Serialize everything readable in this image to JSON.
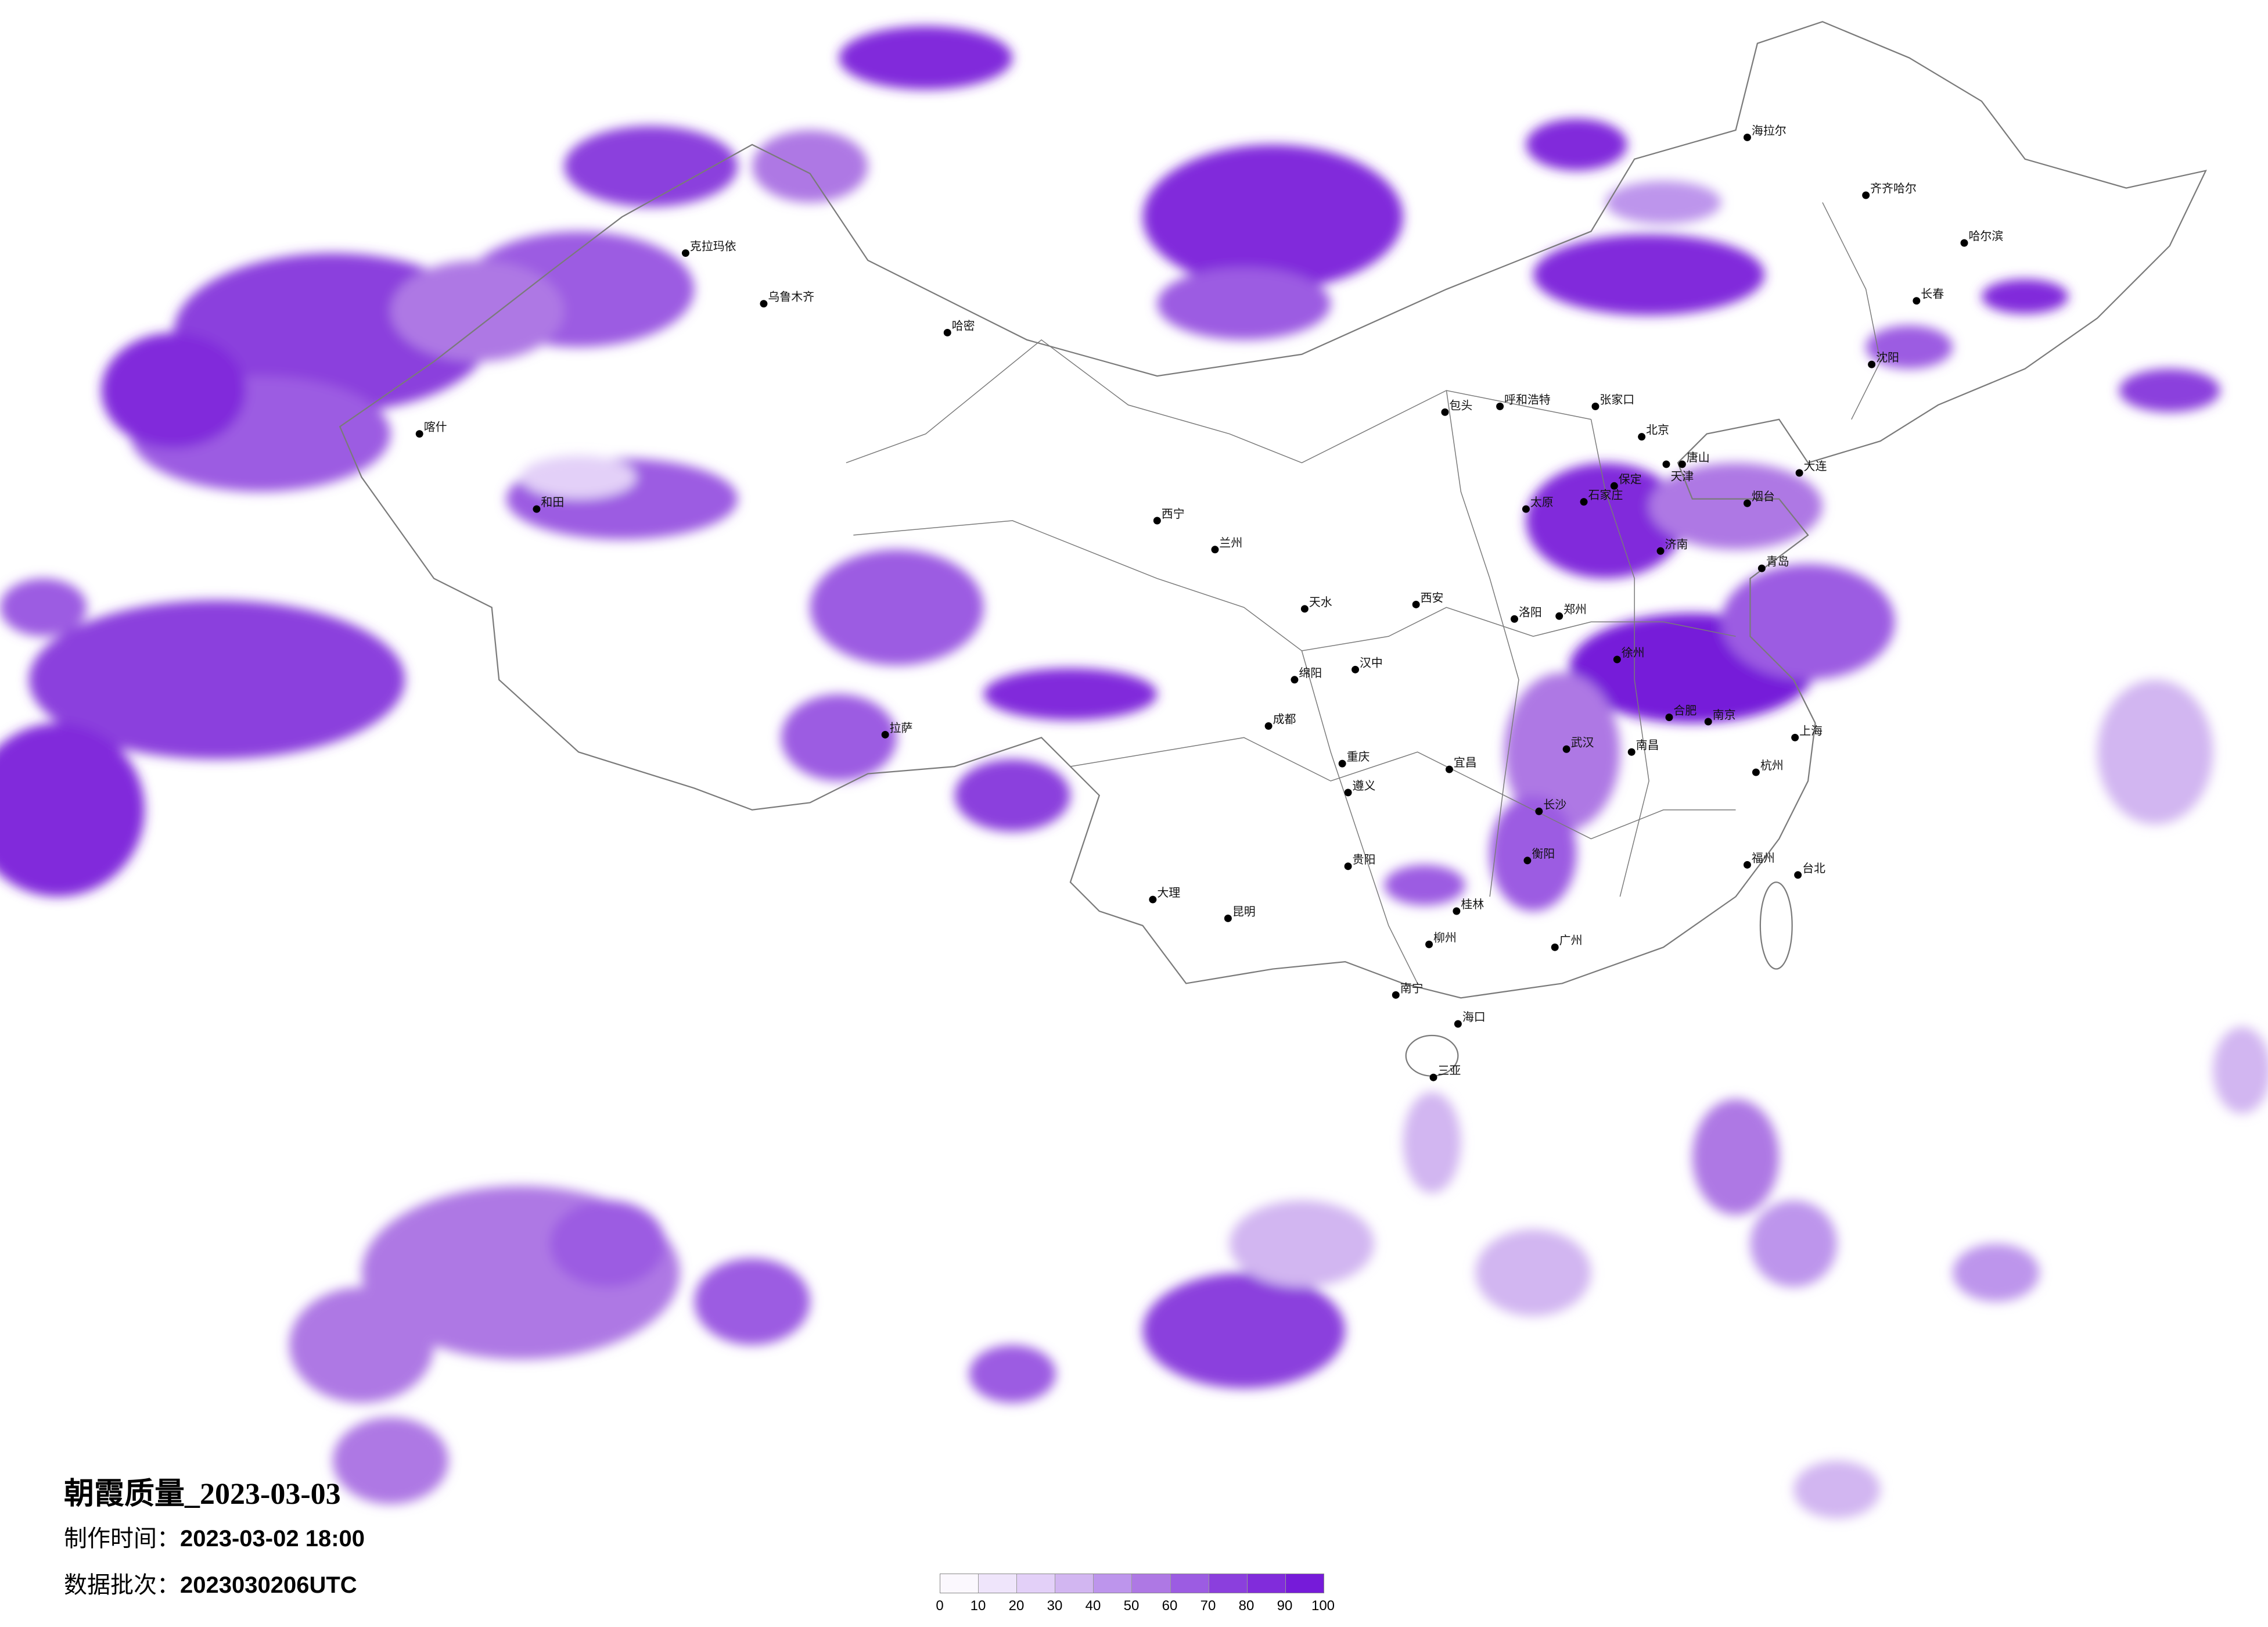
{
  "title": "朝霞质量_2023-03-03",
  "made_time": {
    "label": "制作时间：",
    "value": "2023-03-02 18:00"
  },
  "data_batch": {
    "label": "数据批次：",
    "value": "2023030206UTC"
  },
  "legend": {
    "ticks": [
      "0",
      "10",
      "20",
      "30",
      "40",
      "50",
      "60",
      "70",
      "80",
      "90",
      "100"
    ],
    "colors": [
      "#fbf8fe",
      "#efe5fb",
      "#e3d0f8",
      "#d2b6f1",
      "#bd95ec",
      "#ae78e4",
      "#9c5ce2",
      "#8b3fdd",
      "#812cdb",
      "#761bd9"
    ]
  },
  "colors": {
    "border": "#7a7a7a",
    "city_dot": "#000000"
  },
  "cities": [
    "北京",
    "天津",
    "石家庄",
    "太原",
    "济南",
    "青岛",
    "郑州",
    "西安",
    "合肥",
    "南京",
    "上海",
    "武汉",
    "杭州",
    "大连",
    "呼和浩特",
    "包头",
    "张家口",
    "沈阳",
    "长春",
    "哈尔滨",
    "齐齐哈尔",
    "海拉尔",
    "成都",
    "重庆",
    "贵阳",
    "昆明",
    "南宁",
    "长沙",
    "福州",
    "广州",
    "海口",
    "台北",
    "拉萨",
    "乌鲁木齐",
    "克拉玛依",
    "哈密",
    "喀什",
    "和田",
    "兰州",
    "西宁",
    "大理",
    "桂林",
    "柳州",
    "三亚",
    "洛阳",
    "保定",
    "唐山",
    "烟台",
    "徐州",
    "南昌",
    "宜昌",
    "遵义",
    "绵阳",
    "汉中",
    "天水",
    "衡阳"
  ]
}
